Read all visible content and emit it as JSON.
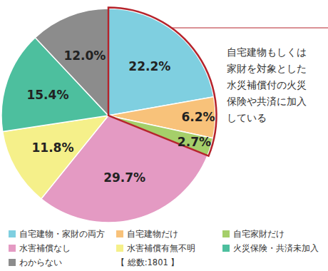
{
  "chart_data": {
    "type": "pie",
    "categories": [
      "自宅建物・家財の両方",
      "自宅建物だけ",
      "自宅家財だけ",
      "水害補償なし",
      "水害補償有無不明",
      "火災保険・共済未加入",
      "わからない"
    ],
    "values": [
      22.2,
      6.2,
      2.7,
      29.7,
      11.8,
      15.4,
      12.0
    ],
    "value_labels": [
      "22.2%",
      "6.2%",
      "2.7%",
      "29.7%",
      "11.8%",
      "15.4%",
      "12.0%"
    ],
    "colors": [
      "#7fcfe0",
      "#f8c27a",
      "#a5cf6a",
      "#e49ac3",
      "#f5f08a",
      "#4dbf9e",
      "#8c8c8c"
    ],
    "data_labels": true,
    "legend": "bottom",
    "annotation": [
      "自宅建物もしくは",
      "家財を対象とした",
      "水災補償付の火災",
      "保険や共済に加入",
      "している"
    ],
    "note": "【 総数:1801 】"
  }
}
